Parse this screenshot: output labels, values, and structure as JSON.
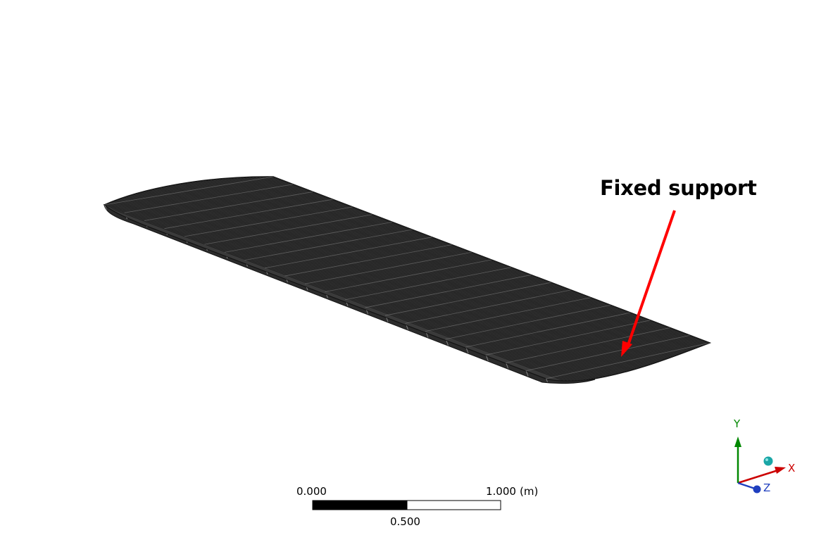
{
  "annotation": {
    "label": "Fixed support",
    "arrow_color": "#ff0000"
  },
  "model": {
    "mesh_fill": "#3a3a3a",
    "mesh_line": "#1a1a1a",
    "highlight_line": "#bfbfbf"
  },
  "scale_bar": {
    "left_label": "0.000",
    "right_value": "1.000",
    "unit": "(m)",
    "mid_label": "0.500"
  },
  "triad": {
    "x_label": "X",
    "y_label": "Y",
    "z_label": "Z",
    "x_color": "#cc0000",
    "y_color": "#008800",
    "z_color": "#1f3fbf",
    "iso_ball_color": "#1aa6a6"
  }
}
